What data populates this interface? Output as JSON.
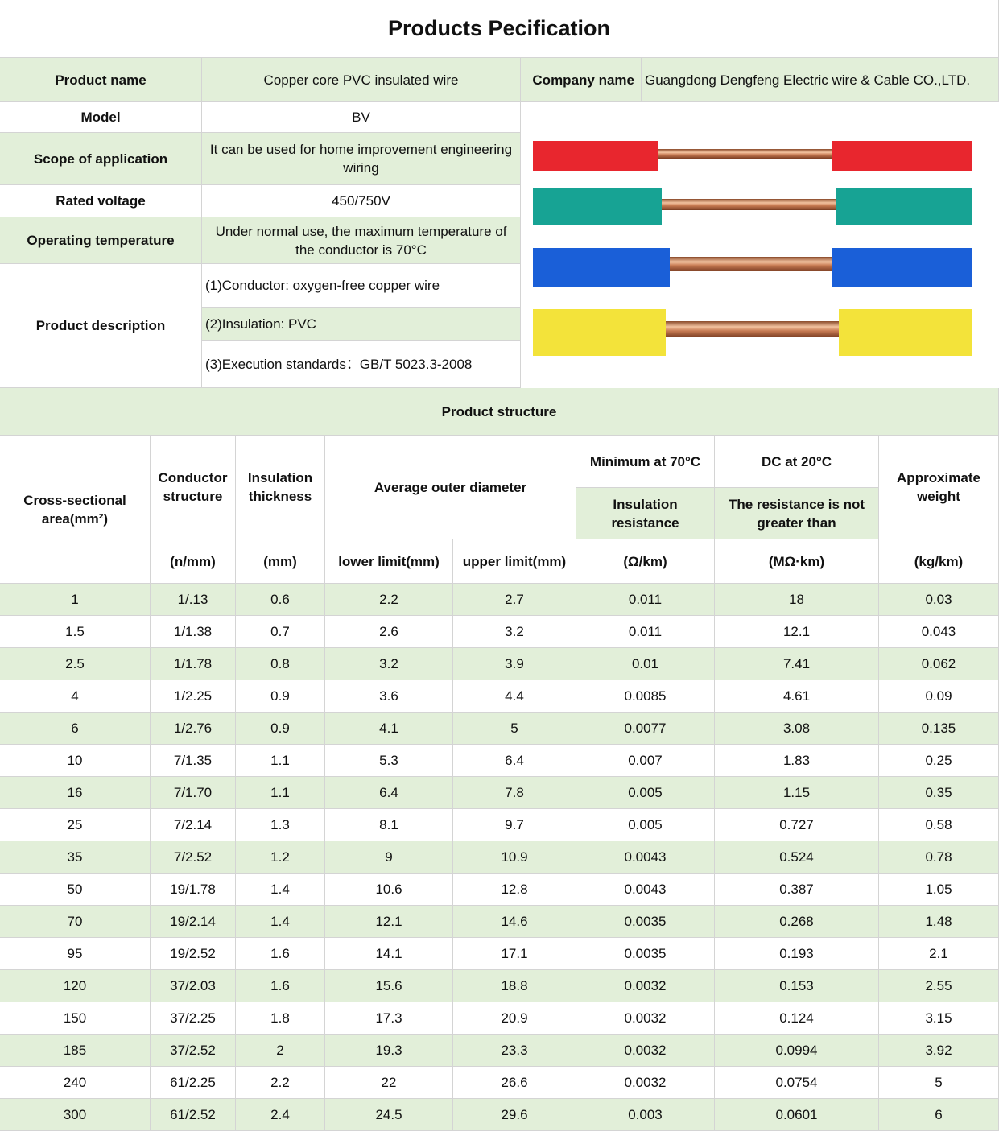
{
  "title": "Products Pecification",
  "info": {
    "product_name": {
      "label": "Product name",
      "value": "Copper core PVC insulated wire"
    },
    "company_name": {
      "label": "Company name",
      "value": "Guangdong Dengfeng Electric wire & Cable CO.,LTD."
    },
    "model": {
      "label": "Model",
      "value": "BV"
    },
    "scope": {
      "label": "Scope of application",
      "value": "It can be used for home improvement engineering wiring"
    },
    "rated_voltage": {
      "label": "Rated voltage",
      "value": "450/750V"
    },
    "operating_temperature": {
      "label": "Operating temperature",
      "value": "Under normal use, the maximum temperature of the conductor is 70°C"
    },
    "product_description": {
      "label": "Product description",
      "items": [
        "(1)Conductor: oxygen-free copper wire",
        "(2)Insulation: PVC",
        "(3)Execution standards：GB/T 5023.3-2008"
      ]
    }
  },
  "structure": {
    "title": "Product structure",
    "headers": {
      "area": "Cross-sectional area(mm²)",
      "conductor": "Conductor structure",
      "insulation": "Insulation thickness",
      "diameter": "Average outer diameter",
      "min70": "Minimum at 70°C",
      "ins_res": "Insulation resistance",
      "dc20": "DC at 20°C",
      "res_not_greater": "The resistance is not greater than",
      "weight": "Approximate weight"
    },
    "units": [
      "(n/mm)",
      "(mm)",
      "lower limit(mm)",
      "upper limit(mm)",
      "(Ω/km)",
      "(MΩ·km)",
      "(kg/km)"
    ],
    "rows": [
      [
        "1",
        "1/.13",
        "0.6",
        "2.2",
        "2.7",
        "0.011",
        "18",
        "0.03"
      ],
      [
        "1.5",
        "1/1.38",
        "0.7",
        "2.6",
        "3.2",
        "0.011",
        "12.1",
        "0.043"
      ],
      [
        "2.5",
        "1/1.78",
        "0.8",
        "3.2",
        "3.9",
        "0.01",
        "7.41",
        "0.062"
      ],
      [
        "4",
        "1/2.25",
        "0.9",
        "3.6",
        "4.4",
        "0.0085",
        "4.61",
        "0.09"
      ],
      [
        "6",
        "1/2.76",
        "0.9",
        "4.1",
        "5",
        "0.0077",
        "3.08",
        "0.135"
      ],
      [
        "10",
        "7/1.35",
        "1.1",
        "5.3",
        "6.4",
        "0.007",
        "1.83",
        "0.25"
      ],
      [
        "16",
        "7/1.70",
        "1.1",
        "6.4",
        "7.8",
        "0.005",
        "1.15",
        "0.35"
      ],
      [
        "25",
        "7/2.14",
        "1.3",
        "8.1",
        "9.7",
        "0.005",
        "0.727",
        "0.58"
      ],
      [
        "35",
        "7/2.52",
        "1.2",
        "9",
        "10.9",
        "0.0043",
        "0.524",
        "0.78"
      ],
      [
        "50",
        "19/1.78",
        "1.4",
        "10.6",
        "12.8",
        "0.0043",
        "0.387",
        "1.05"
      ],
      [
        "70",
        "19/2.14",
        "1.4",
        "12.1",
        "14.6",
        "0.0035",
        "0.268",
        "1.48"
      ],
      [
        "95",
        "19/2.52",
        "1.6",
        "14.1",
        "17.1",
        "0.0035",
        "0.193",
        "2.1"
      ],
      [
        "120",
        "37/2.03",
        "1.6",
        "15.6",
        "18.8",
        "0.0032",
        "0.153",
        "2.55"
      ],
      [
        "150",
        "37/2.25",
        "1.8",
        "17.3",
        "20.9",
        "0.0032",
        "0.124",
        "3.15"
      ],
      [
        "185",
        "37/2.52",
        "2",
        "19.3",
        "23.3",
        "0.0032",
        "0.0994",
        "3.92"
      ],
      [
        "240",
        "61/2.25",
        "2.2",
        "22",
        "26.6",
        "0.0032",
        "0.0754",
        "5"
      ],
      [
        "300",
        "61/2.52",
        "2.4",
        "24.5",
        "29.6",
        "0.003",
        "0.0601",
        "6"
      ]
    ]
  }
}
